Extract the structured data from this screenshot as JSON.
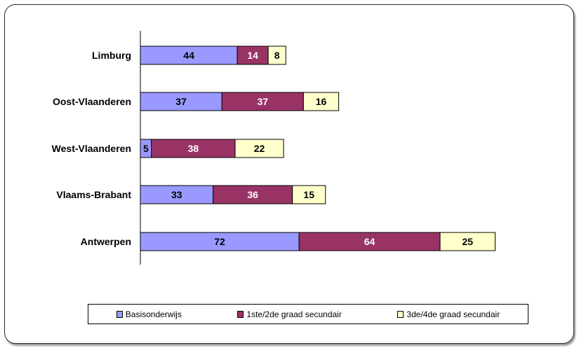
{
  "chart_data": {
    "type": "bar",
    "orientation": "horizontal",
    "stacked": true,
    "categories": [
      "Limburg",
      "Oost-Vlaanderen",
      "West-Vlaanderen",
      "Vlaams-Brabant",
      "Antwerpen"
    ],
    "series": [
      {
        "name": "Basisonderwijs",
        "values": [
          44,
          37,
          5,
          33,
          72
        ],
        "color": "#9999ff"
      },
      {
        "name": "1ste/2de graad secundair",
        "values": [
          14,
          37,
          38,
          36,
          64
        ],
        "color": "#993366"
      },
      {
        "name": "3de/4de graad secundair",
        "values": [
          8,
          16,
          22,
          15,
          25
        ],
        "color": "#ffffcc"
      }
    ],
    "label_colors": [
      "#000000",
      "#ffffff",
      "#000000"
    ],
    "grid": false,
    "legend_position": "bottom"
  }
}
